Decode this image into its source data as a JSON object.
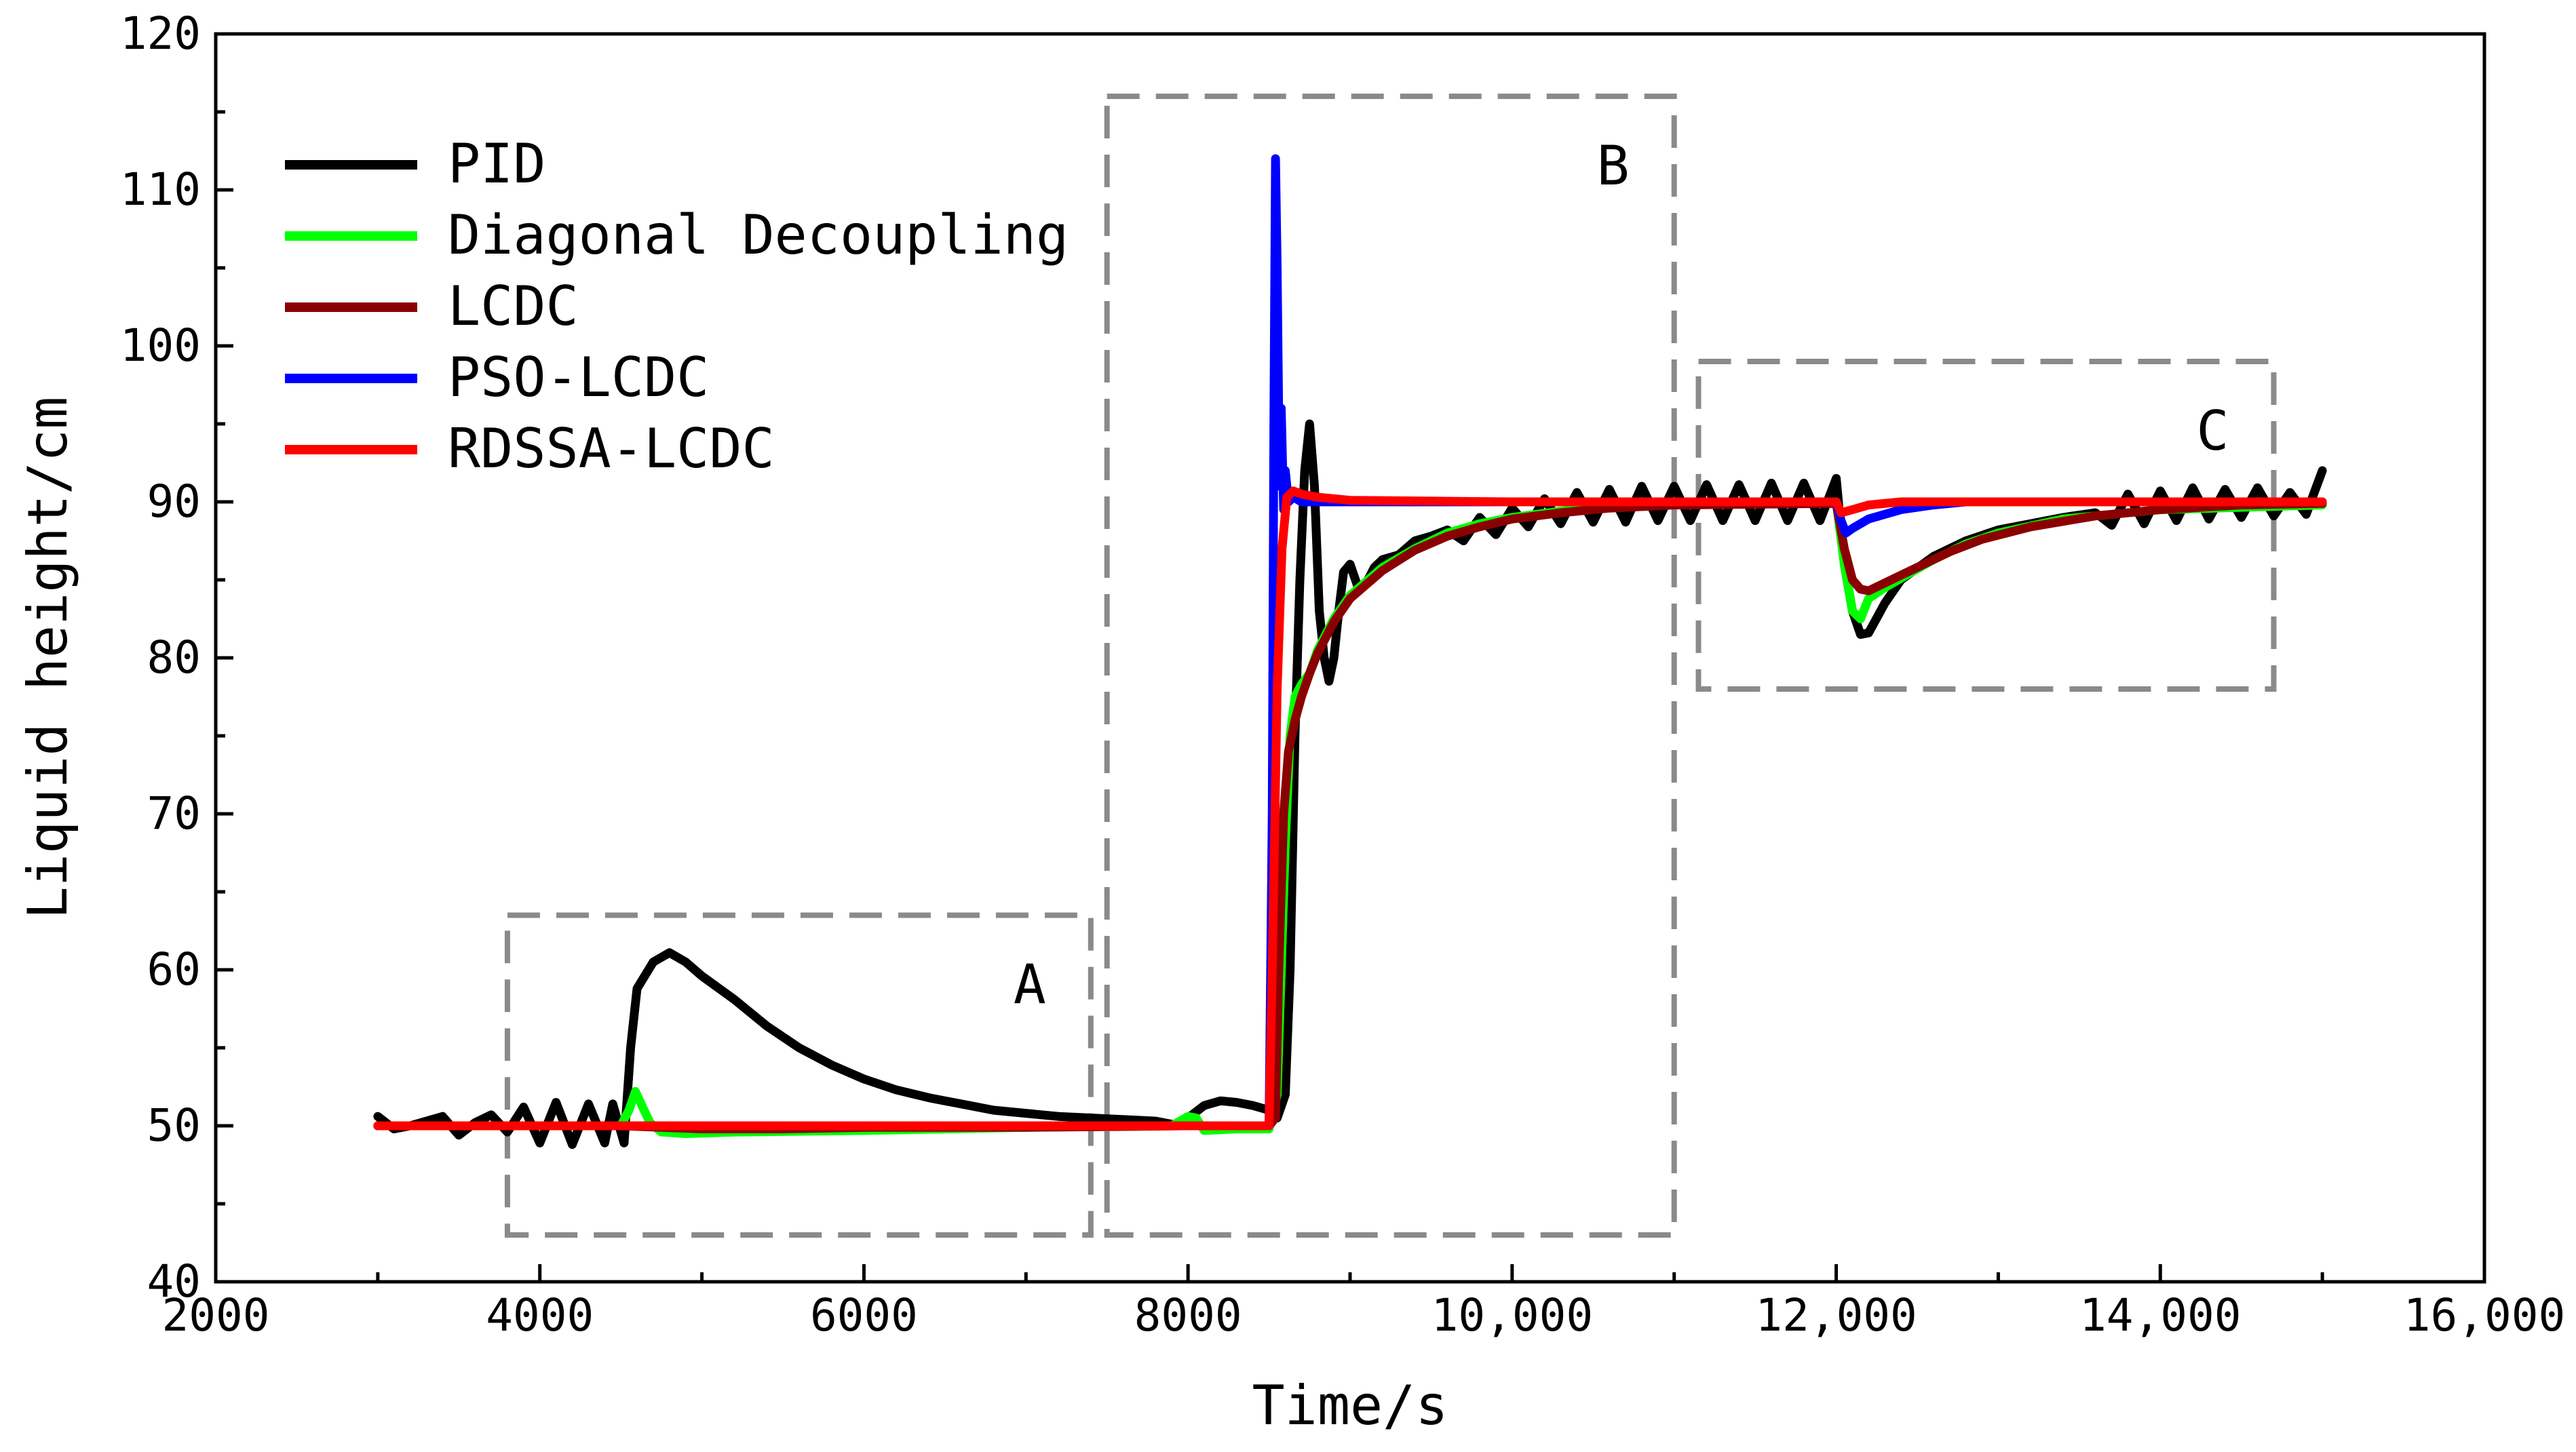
{
  "chart_data": {
    "type": "line",
    "title": "",
    "xlabel": "Time/s",
    "ylabel": "Liquid height/cm",
    "xlim": [
      2000,
      16000
    ],
    "ylim": [
      40,
      120
    ],
    "xticks": [
      2000,
      4000,
      6000,
      8000,
      10000,
      12000,
      14000,
      16000
    ],
    "xtick_labels": [
      "2000",
      "4000",
      "6000",
      "8000",
      "10,000",
      "12,000",
      "14,000",
      "16,000"
    ],
    "yticks": [
      40,
      50,
      60,
      70,
      80,
      90,
      100,
      110,
      120
    ],
    "ytick_labels": [
      "40",
      "50",
      "60",
      "70",
      "80",
      "90",
      "100",
      "110",
      "120"
    ],
    "grid": false,
    "legend_position": "top-left",
    "regions": [
      {
        "label": "A",
        "x": [
          3800,
          7400
        ],
        "y": [
          43,
          63.5
        ]
      },
      {
        "label": "B",
        "x": [
          7500,
          11000
        ],
        "y": [
          43,
          116
        ]
      },
      {
        "label": "C",
        "x": [
          11150,
          14700
        ],
        "y": [
          78,
          99
        ]
      }
    ],
    "series": [
      {
        "name": "PID",
        "color": "#000000",
        "points": [
          [
            3000,
            50.6
          ],
          [
            3100,
            49.8
          ],
          [
            3200,
            50.0
          ],
          [
            3300,
            50.3
          ],
          [
            3400,
            50.6
          ],
          [
            3500,
            49.4
          ],
          [
            3600,
            50.2
          ],
          [
            3700,
            50.7
          ],
          [
            3800,
            49.6
          ],
          [
            3900,
            51.2
          ],
          [
            4000,
            48.9
          ],
          [
            4100,
            51.5
          ],
          [
            4200,
            48.8
          ],
          [
            4300,
            51.4
          ],
          [
            4400,
            48.9
          ],
          [
            4450,
            51.4
          ],
          [
            4520,
            48.9
          ],
          [
            4560,
            55.0
          ],
          [
            4600,
            58.8
          ],
          [
            4700,
            60.5
          ],
          [
            4800,
            61.1
          ],
          [
            4900,
            60.5
          ],
          [
            5000,
            59.6
          ],
          [
            5200,
            58.1
          ],
          [
            5400,
            56.4
          ],
          [
            5600,
            55.0
          ],
          [
            5800,
            53.9
          ],
          [
            6000,
            53.0
          ],
          [
            6200,
            52.3
          ],
          [
            6400,
            51.8
          ],
          [
            6600,
            51.4
          ],
          [
            6800,
            51.0
          ],
          [
            7000,
            50.8
          ],
          [
            7200,
            50.6
          ],
          [
            7400,
            50.5
          ],
          [
            7600,
            50.4
          ],
          [
            7800,
            50.3
          ],
          [
            7950,
            50.0
          ],
          [
            8000,
            50.5
          ],
          [
            8100,
            51.3
          ],
          [
            8200,
            51.6
          ],
          [
            8300,
            51.5
          ],
          [
            8400,
            51.3
          ],
          [
            8500,
            51.0
          ],
          [
            8550,
            50.5
          ],
          [
            8600,
            52.0
          ],
          [
            8630,
            60.0
          ],
          [
            8660,
            75.0
          ],
          [
            8690,
            85.0
          ],
          [
            8720,
            92.0
          ],
          [
            8750,
            95.0
          ],
          [
            8780,
            91.0
          ],
          [
            8810,
            83.0
          ],
          [
            8840,
            80.0
          ],
          [
            8870,
            78.5
          ],
          [
            8900,
            80.0
          ],
          [
            8930,
            83.0
          ],
          [
            8960,
            85.5
          ],
          [
            9000,
            86.0
          ],
          [
            9050,
            84.5
          ],
          [
            9100,
            84.8
          ],
          [
            9150,
            85.8
          ],
          [
            9200,
            86.3
          ],
          [
            9300,
            86.6
          ],
          [
            9400,
            87.5
          ],
          [
            9500,
            87.8
          ],
          [
            9600,
            88.2
          ],
          [
            9700,
            87.5
          ],
          [
            9800,
            89.0
          ],
          [
            9900,
            87.9
          ],
          [
            10000,
            89.6
          ],
          [
            10100,
            88.4
          ],
          [
            10200,
            90.2
          ],
          [
            10300,
            88.6
          ],
          [
            10400,
            90.6
          ],
          [
            10500,
            88.7
          ],
          [
            10600,
            90.8
          ],
          [
            10700,
            88.7
          ],
          [
            10800,
            91.0
          ],
          [
            10900,
            88.8
          ],
          [
            11000,
            91.0
          ],
          [
            11100,
            88.8
          ],
          [
            11200,
            91.1
          ],
          [
            11300,
            88.8
          ],
          [
            11400,
            91.1
          ],
          [
            11500,
            88.8
          ],
          [
            11600,
            91.2
          ],
          [
            11700,
            88.8
          ],
          [
            11800,
            91.2
          ],
          [
            11900,
            88.8
          ],
          [
            12000,
            91.5
          ],
          [
            12050,
            86.0
          ],
          [
            12100,
            83.0
          ],
          [
            12150,
            81.5
          ],
          [
            12200,
            81.6
          ],
          [
            12300,
            83.5
          ],
          [
            12400,
            85.0
          ],
          [
            12600,
            86.5
          ],
          [
            12800,
            87.5
          ],
          [
            13000,
            88.2
          ],
          [
            13200,
            88.6
          ],
          [
            13400,
            89.0
          ],
          [
            13600,
            89.3
          ],
          [
            13700,
            88.5
          ],
          [
            13800,
            90.5
          ],
          [
            13900,
            88.6
          ],
          [
            14000,
            90.7
          ],
          [
            14100,
            88.8
          ],
          [
            14200,
            90.9
          ],
          [
            14300,
            88.9
          ],
          [
            14400,
            90.8
          ],
          [
            14500,
            89.0
          ],
          [
            14600,
            90.9
          ],
          [
            14700,
            89.1
          ],
          [
            14800,
            90.6
          ],
          [
            14900,
            89.2
          ],
          [
            15000,
            92.0
          ]
        ]
      },
      {
        "name": "Diagonal Decoupling",
        "color": "#00ff00",
        "points": [
          [
            3000,
            50.0
          ],
          [
            4500,
            50.0
          ],
          [
            4550,
            51.0
          ],
          [
            4590,
            52.2
          ],
          [
            4630,
            51.3
          ],
          [
            4680,
            50.2
          ],
          [
            4750,
            49.6
          ],
          [
            4900,
            49.5
          ],
          [
            5200,
            49.6
          ],
          [
            6000,
            49.7
          ],
          [
            7000,
            49.9
          ],
          [
            7900,
            50.0
          ],
          [
            8000,
            50.6
          ],
          [
            8050,
            50.5
          ],
          [
            8100,
            49.7
          ],
          [
            8300,
            49.8
          ],
          [
            8500,
            49.8
          ],
          [
            8550,
            52.0
          ],
          [
            8600,
            68.0
          ],
          [
            8630,
            75.0
          ],
          [
            8660,
            77.5
          ],
          [
            8700,
            78.3
          ],
          [
            8750,
            79.0
          ],
          [
            8800,
            80.5
          ],
          [
            8900,
            82.5
          ],
          [
            9000,
            84.0
          ],
          [
            9200,
            85.8
          ],
          [
            9400,
            87.0
          ],
          [
            9600,
            88.0
          ],
          [
            9800,
            88.6
          ],
          [
            10000,
            89.0
          ],
          [
            10300,
            89.4
          ],
          [
            10600,
            89.7
          ],
          [
            11000,
            89.9
          ],
          [
            12000,
            90.0
          ],
          [
            12050,
            86.0
          ],
          [
            12100,
            83.0
          ],
          [
            12150,
            82.5
          ],
          [
            12200,
            83.8
          ],
          [
            12300,
            84.5
          ],
          [
            12600,
            86.3
          ],
          [
            12800,
            87.3
          ],
          [
            13000,
            88.0
          ],
          [
            13400,
            88.9
          ],
          [
            14000,
            89.5
          ],
          [
            15000,
            89.8
          ]
        ]
      },
      {
        "name": "LCDC",
        "color": "#8b0000",
        "points": [
          [
            3000,
            50.0
          ],
          [
            4500,
            50.0
          ],
          [
            5000,
            49.8
          ],
          [
            5500,
            49.8
          ],
          [
            6000,
            49.9
          ],
          [
            7000,
            49.9
          ],
          [
            8000,
            50.0
          ],
          [
            8500,
            50.0
          ],
          [
            8540,
            50.5
          ],
          [
            8560,
            60.0
          ],
          [
            8590,
            70.0
          ],
          [
            8620,
            74.0
          ],
          [
            8660,
            76.0
          ],
          [
            8700,
            77.5
          ],
          [
            8750,
            79.0
          ],
          [
            8800,
            80.3
          ],
          [
            8900,
            82.3
          ],
          [
            9000,
            83.8
          ],
          [
            9200,
            85.6
          ],
          [
            9400,
            86.9
          ],
          [
            9600,
            87.8
          ],
          [
            9800,
            88.4
          ],
          [
            10000,
            88.9
          ],
          [
            10300,
            89.3
          ],
          [
            10600,
            89.6
          ],
          [
            11000,
            89.8
          ],
          [
            12000,
            89.9
          ],
          [
            12050,
            87.0
          ],
          [
            12100,
            85.0
          ],
          [
            12150,
            84.4
          ],
          [
            12200,
            84.3
          ],
          [
            12300,
            84.8
          ],
          [
            12500,
            85.8
          ],
          [
            12700,
            86.8
          ],
          [
            12900,
            87.6
          ],
          [
            13200,
            88.4
          ],
          [
            13600,
            89.1
          ],
          [
            14000,
            89.5
          ],
          [
            14500,
            89.8
          ],
          [
            15000,
            89.9
          ]
        ]
      },
      {
        "name": "PSO-LCDC",
        "color": "#0000ff",
        "points": [
          [
            3000,
            50.0
          ],
          [
            8000,
            50.0
          ],
          [
            8500,
            50.0
          ],
          [
            8520,
            70.0
          ],
          [
            8530,
            95.0
          ],
          [
            8540,
            112.0
          ],
          [
            8550,
            105.0
          ],
          [
            8560,
            95.0
          ],
          [
            8570,
            91.0
          ],
          [
            8575,
            96.0
          ],
          [
            8590,
            89.5
          ],
          [
            8600,
            92.0
          ],
          [
            8620,
            90.0
          ],
          [
            8650,
            90.3
          ],
          [
            8700,
            90.0
          ],
          [
            8800,
            90.0
          ],
          [
            9000,
            90.0
          ],
          [
            12000,
            90.0
          ],
          [
            12030,
            88.8
          ],
          [
            12060,
            88.0
          ],
          [
            12100,
            88.3
          ],
          [
            12200,
            88.9
          ],
          [
            12400,
            89.5
          ],
          [
            12600,
            89.8
          ],
          [
            12800,
            90.0
          ],
          [
            15000,
            90.0
          ]
        ]
      },
      {
        "name": "RDSSA-LCDC",
        "color": "#ff0000",
        "points": [
          [
            3000,
            50.0
          ],
          [
            5000,
            50.0
          ],
          [
            7000,
            50.0
          ],
          [
            8000,
            50.0
          ],
          [
            8500,
            50.0
          ],
          [
            8520,
            60.0
          ],
          [
            8550,
            78.0
          ],
          [
            8580,
            87.0
          ],
          [
            8610,
            90.3
          ],
          [
            8650,
            90.7
          ],
          [
            8700,
            90.5
          ],
          [
            8800,
            90.3
          ],
          [
            9000,
            90.1
          ],
          [
            10000,
            90.0
          ],
          [
            12000,
            90.0
          ],
          [
            12030,
            89.3
          ],
          [
            12100,
            89.5
          ],
          [
            12200,
            89.8
          ],
          [
            12400,
            90.0
          ],
          [
            15000,
            90.0
          ]
        ]
      }
    ]
  }
}
